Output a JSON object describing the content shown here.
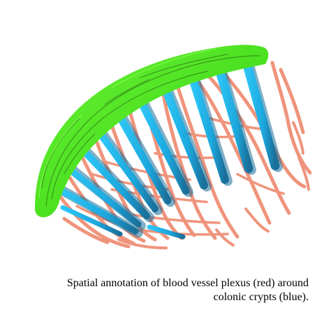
{
  "caption": {
    "line1": "Spatial annotation of blood vessel plexus (red) around",
    "line2": "colonic crypts (blue)."
  },
  "colors": {
    "background": "#ffffff",
    "epithelium_surface": "#49e01f",
    "epithelium_dark": "#2f7a17",
    "blood_vessels": "#ef8f76",
    "blood_vessels_dark": "#d86f58",
    "crypts": "#1eb6ec",
    "crypts_shadow": "#1a6f9a"
  },
  "structures": [
    {
      "name": "epithelium-surface",
      "color_key": "epithelium_surface"
    },
    {
      "name": "blood-vessel-plexus",
      "color_key": "blood_vessels"
    },
    {
      "name": "colonic-crypts",
      "color_key": "crypts"
    }
  ]
}
